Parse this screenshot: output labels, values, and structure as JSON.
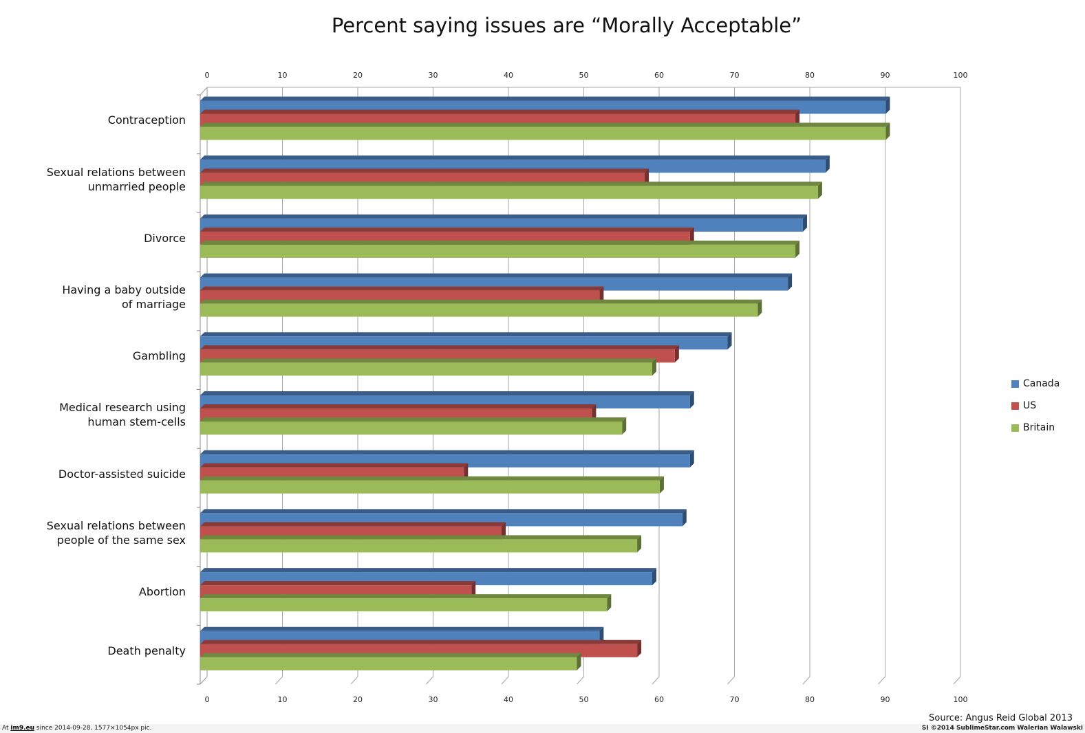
{
  "chart_data": {
    "type": "bar",
    "orientation": "horizontal",
    "title": "Percent saying issues are “Morally Acceptable”",
    "xlim": [
      0,
      100
    ],
    "x_ticks": [
      "0",
      "10",
      "20",
      "30",
      "40",
      "50",
      "60",
      "70",
      "80",
      "90",
      "100"
    ],
    "categories": [
      "Contraception",
      "Sexual relations between\nunmarried people",
      "Divorce",
      "Having a baby outside\nof marriage",
      "Gambling",
      "Medical research using\nhuman stem-cells",
      "Doctor-assisted suicide",
      "Sexual relations between\npeople of the same sex",
      "Abortion",
      "Death penalty"
    ],
    "series": [
      {
        "name": "Canada",
        "color": "#4F81BD",
        "values": [
          91,
          83,
          80,
          78,
          70,
          65,
          65,
          64,
          60,
          53
        ]
      },
      {
        "name": "US",
        "color": "#C0504D",
        "values": [
          79,
          59,
          65,
          53,
          63,
          52,
          35,
          40,
          36,
          58
        ]
      },
      {
        "name": "Britain",
        "color": "#9BBB59",
        "values": [
          91,
          82,
          79,
          74,
          60,
          56,
          61,
          58,
          54,
          50
        ]
      }
    ],
    "grid": true,
    "legend_position": "right"
  },
  "source": "Source: Angus Reid Global 2013",
  "footer": {
    "left_prefix": "At ",
    "left_host": "im9.eu",
    "left_suffix": " since 2014-09-28, 1577×1054px pic.",
    "right": "SI ©2014 SublimeStar.com Walerian Walawski"
  }
}
